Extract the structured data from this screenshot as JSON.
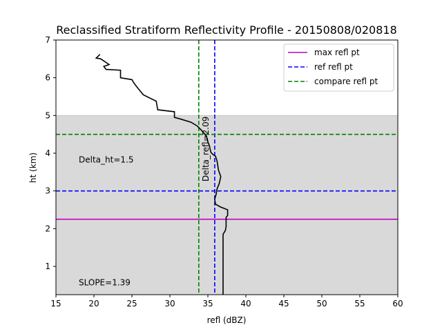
{
  "chart_data": {
    "type": "line",
    "title": "Reclassified Stratiform Reflectivity Profile - 20150808/020818",
    "xlabel": "refl (dBZ)",
    "ylabel": "ht (km)",
    "xlim": [
      15,
      60
    ],
    "ylim": [
      0.25,
      7
    ],
    "xticks": [
      15,
      20,
      25,
      30,
      35,
      40,
      45,
      50,
      55,
      60
    ],
    "yticks": [
      1,
      2,
      3,
      4,
      5,
      6,
      7
    ],
    "grid": false,
    "legend_position": "top-right",
    "shaded_region": {
      "y_from": 0.25,
      "y_to": 5.0,
      "color": "#d9d9d9"
    },
    "profile": {
      "color": "#000000",
      "points": [
        [
          37.0,
          0.25
        ],
        [
          37.0,
          1.0
        ],
        [
          37.0,
          1.5
        ],
        [
          37.0,
          1.85
        ],
        [
          37.3,
          1.95
        ],
        [
          37.4,
          2.05
        ],
        [
          37.4,
          2.3
        ],
        [
          37.6,
          2.35
        ],
        [
          37.6,
          2.5
        ],
        [
          36.6,
          2.58
        ],
        [
          36.0,
          2.65
        ],
        [
          35.9,
          2.78
        ],
        [
          36.1,
          2.92
        ],
        [
          36.2,
          3.05
        ],
        [
          36.5,
          3.2
        ],
        [
          36.7,
          3.38
        ],
        [
          36.4,
          3.55
        ],
        [
          36.2,
          3.8
        ],
        [
          36.0,
          3.92
        ],
        [
          35.6,
          3.98
        ],
        [
          35.4,
          4.02
        ],
        [
          35.3,
          4.1
        ],
        [
          35.2,
          4.2
        ],
        [
          35.0,
          4.3
        ],
        [
          34.9,
          4.4
        ],
        [
          34.7,
          4.48
        ],
        [
          34.4,
          4.55
        ],
        [
          34.1,
          4.62
        ],
        [
          33.6,
          4.72
        ],
        [
          32.8,
          4.82
        ],
        [
          31.5,
          4.9
        ],
        [
          30.6,
          4.95
        ],
        [
          30.6,
          5.1
        ],
        [
          28.4,
          5.15
        ],
        [
          28.2,
          5.38
        ],
        [
          26.5,
          5.55
        ],
        [
          25.8,
          5.72
        ],
        [
          25.3,
          5.85
        ],
        [
          25.0,
          5.95
        ],
        [
          23.5,
          6.0
        ],
        [
          23.5,
          6.2
        ],
        [
          21.6,
          6.22
        ],
        [
          21.3,
          6.3
        ],
        [
          22.0,
          6.35
        ],
        [
          20.9,
          6.5
        ],
        [
          20.3,
          6.52
        ],
        [
          20.8,
          6.62
        ]
      ]
    },
    "lines": [
      {
        "name": "max refl pt",
        "orientation": "horizontal",
        "value": 2.25,
        "style": "solid",
        "color": "#bf00bf"
      },
      {
        "name": "ref refl pt",
        "orientation": "horizontal",
        "value": 3.0,
        "style": "dashed",
        "color": "#0000ff"
      },
      {
        "name": "ref refl pt",
        "orientation": "vertical",
        "value": 35.9,
        "style": "dashed",
        "color": "#0000ff"
      },
      {
        "name": "compare refl pt",
        "orientation": "horizontal",
        "value": 4.5,
        "style": "dashed",
        "color": "#008000"
      },
      {
        "name": "compare refl pt",
        "orientation": "vertical",
        "value": 33.8,
        "style": "dashed",
        "color": "#008000"
      }
    ],
    "legend": [
      {
        "label": "max refl pt",
        "style": "solid",
        "color": "#bf00bf"
      },
      {
        "label": "ref refl pt",
        "style": "dashed",
        "color": "#0000ff"
      },
      {
        "label": "compare refl pt",
        "style": "dashed",
        "color": "#008000"
      }
    ],
    "annotations": [
      {
        "text": "Delta_ht=1.5",
        "x": 18,
        "y": 3.75,
        "rotation": 0
      },
      {
        "text": "SLOPE=1.39",
        "x": 18,
        "y": 0.5,
        "rotation": 0
      },
      {
        "text": "Delta_refl=2.09",
        "x": 35.1,
        "y": 3.25,
        "rotation": -90
      }
    ]
  }
}
